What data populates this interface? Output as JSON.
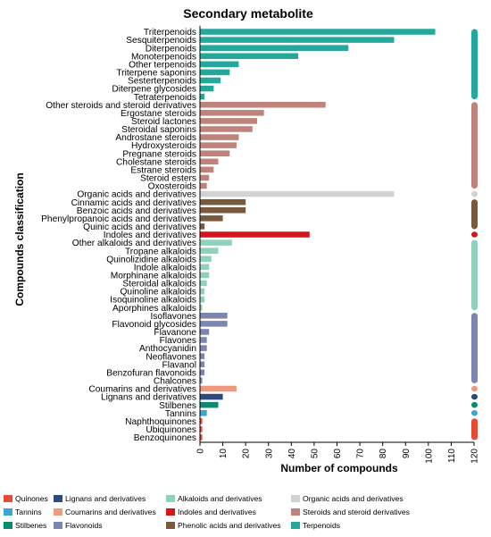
{
  "chart_data": {
    "type": "bar",
    "orientation": "horizontal",
    "title": "Secondary metabolite",
    "xlabel": "Number of compounds",
    "ylabel": "Compounds classification",
    "xlim": [
      0,
      120
    ],
    "xticks": [
      "0",
      "10",
      "20",
      "30",
      "40",
      "50",
      "60",
      "70",
      "80",
      "90",
      "100",
      "110",
      "120"
    ],
    "grid": false,
    "legend_position": "bottom",
    "groups": [
      {
        "name": "Terpenoids",
        "color": "#23a89c",
        "items": [
          {
            "label": "Triterpenoids",
            "value": 103
          },
          {
            "label": "Sesquiterpenoids",
            "value": 85
          },
          {
            "label": "Diterpenoids",
            "value": 65
          },
          {
            "label": "Monoterpenoids",
            "value": 43
          },
          {
            "label": "Other terpenoids",
            "value": 17
          },
          {
            "label": "Triterpene saponins",
            "value": 13
          },
          {
            "label": "Sesterterpenoids",
            "value": 9
          },
          {
            "label": "Diterpene glycosides",
            "value": 6
          },
          {
            "label": "Tetraterpenoids",
            "value": 2
          }
        ]
      },
      {
        "name": "Steroids and steroid derivatives",
        "color": "#c0837b",
        "items": [
          {
            "label": "Other steroids and steroid derivatives",
            "value": 55
          },
          {
            "label": "Ergostane steroids",
            "value": 28
          },
          {
            "label": "Steroid lactones",
            "value": 25
          },
          {
            "label": "Steroidal saponins",
            "value": 23
          },
          {
            "label": "Androstane steroids",
            "value": 17
          },
          {
            "label": "Hydroxysteroids",
            "value": 16
          },
          {
            "label": "Pregnane steroids",
            "value": 13
          },
          {
            "label": "Cholestane steroids",
            "value": 8
          },
          {
            "label": "Estrane steroids",
            "value": 6
          },
          {
            "label": "Steroid esters",
            "value": 4
          },
          {
            "label": "Oxosteroids",
            "value": 3
          }
        ]
      },
      {
        "name": "Organic acids and derivatives",
        "color": "#d2d2d2",
        "items": [
          {
            "label": "Organic acids and derivatives",
            "value": 85
          }
        ]
      },
      {
        "name": "Phenolic acids and derivatives",
        "color": "#7a5a3f",
        "items": [
          {
            "label": "Cinnamic acids and derivatives",
            "value": 20
          },
          {
            "label": "Benzoic acids and derivatives",
            "value": 20
          },
          {
            "label": "Phenylpropanoic acids and derivatives",
            "value": 10
          },
          {
            "label": "Quinic acids and derivatives",
            "value": 2
          }
        ]
      },
      {
        "name": "Indoles and derivatives",
        "color": "#d7141c",
        "items": [
          {
            "label": "Indoles and derivatives",
            "value": 48
          }
        ]
      },
      {
        "name": "Alkaloids and derivatives",
        "color": "#8fd1b9",
        "items": [
          {
            "label": "Other alkaloids and derivatives",
            "value": 14
          },
          {
            "label": "Tropane alkaloids",
            "value": 8
          },
          {
            "label": "Quinolizidine alkaloids",
            "value": 5
          },
          {
            "label": "Indole alkaloids",
            "value": 4
          },
          {
            "label": "Morphinane alkaloids",
            "value": 4
          },
          {
            "label": "Steroidal alkaloids",
            "value": 3
          },
          {
            "label": "Quinoline alkaloids",
            "value": 2
          },
          {
            "label": "Isoquinoline alkaloids",
            "value": 2
          },
          {
            "label": "Aporphines alkaloids",
            "value": 1
          }
        ]
      },
      {
        "name": "Flavonoids",
        "color": "#7c86b0",
        "items": [
          {
            "label": "Isoflavones",
            "value": 12
          },
          {
            "label": "Flavonoid glycosides",
            "value": 12
          },
          {
            "label": "Flavanone",
            "value": 4
          },
          {
            "label": "Flavones",
            "value": 3
          },
          {
            "label": "Anthocyanidin",
            "value": 3
          },
          {
            "label": "Neoflavones",
            "value": 2
          },
          {
            "label": "Flavanol",
            "value": 2
          },
          {
            "label": "Benzofuran flavonoids",
            "value": 2
          },
          {
            "label": "Chalcones",
            "value": 1
          }
        ]
      },
      {
        "name": "Coumarins and derivatives",
        "color": "#ef9a7e",
        "items": [
          {
            "label": "Coumarins and derivatives",
            "value": 16
          }
        ]
      },
      {
        "name": "Lignans and derivatives",
        "color": "#2e4a7d",
        "items": [
          {
            "label": "Lignans and derivatives",
            "value": 10
          }
        ]
      },
      {
        "name": "Stilbenes",
        "color": "#0a8a6e",
        "items": [
          {
            "label": "Stilbenes",
            "value": 8
          }
        ]
      },
      {
        "name": "Tannins",
        "color": "#3aa6d1",
        "items": [
          {
            "label": "Tannins",
            "value": 3
          }
        ]
      },
      {
        "name": "Quinones",
        "color": "#e64b35",
        "items": [
          {
            "label": "Naphthoquinones",
            "value": 1
          },
          {
            "label": "Ubiquinones",
            "value": 1
          },
          {
            "label": "Benzoquinones",
            "value": 1
          }
        ]
      }
    ],
    "legend": [
      {
        "label": "Quinones",
        "color": "#e64b35"
      },
      {
        "label": "Lignans and derivatives",
        "color": "#2e4a7d"
      },
      {
        "label": "Alkaloids and derivatives",
        "color": "#8fd1b9"
      },
      {
        "label": "Organic acids and derivatives",
        "color": "#d2d2d2"
      },
      {
        "label": "Tannins",
        "color": "#3aa6d1"
      },
      {
        "label": "Coumarins and derivatives",
        "color": "#ef9a7e"
      },
      {
        "label": "Indoles and derivatives",
        "color": "#d7141c"
      },
      {
        "label": "Steroids and steroid derivatives",
        "color": "#c0837b"
      },
      {
        "label": "Stilbenes",
        "color": "#0a8a6e"
      },
      {
        "label": "Flavonoids",
        "color": "#7c86b0"
      },
      {
        "label": "Phenolic acids and derivatives",
        "color": "#7a5a3f"
      },
      {
        "label": "Terpenoids",
        "color": "#23a89c"
      }
    ]
  }
}
